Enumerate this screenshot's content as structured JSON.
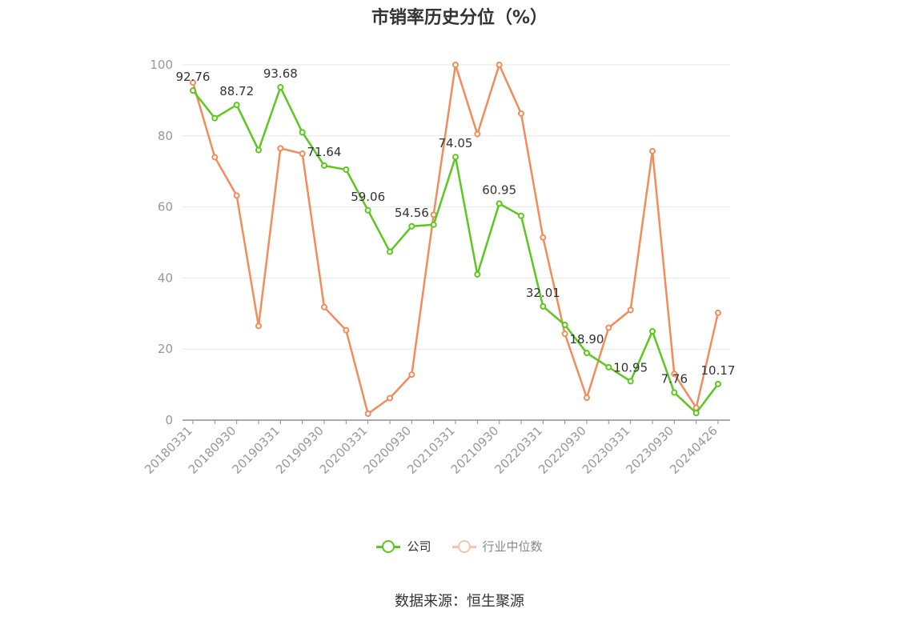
{
  "title": "市销率历史分位（%）",
  "source_text": "数据来源：恒生聚源",
  "legend": [
    {
      "label": "公司",
      "color": "#5cc81e",
      "text_color": "#333333"
    },
    {
      "label": "行业中位数",
      "color": "#f5c3ad",
      "text_color": "#888888"
    }
  ],
  "chart_data": {
    "type": "line",
    "title": "市销率历史分位（%）",
    "ylim": [
      0,
      100
    ],
    "yticks": [
      0,
      20,
      40,
      60,
      80,
      100
    ],
    "grid": true,
    "legend_position": "bottom",
    "xtick_labels": [
      "20180331",
      "20180930",
      "20190331",
      "20190930",
      "20200331",
      "20200930",
      "20210331",
      "20210930",
      "20220331",
      "20220930",
      "20230331",
      "20230930",
      "20240426"
    ],
    "x": [
      "20180331",
      "20180630",
      "20180930",
      "20181231",
      "20190331",
      "20190630",
      "20190930",
      "20191231",
      "20200331",
      "20200630",
      "20200930",
      "20201231",
      "20210331",
      "20210630",
      "20210930",
      "20211231",
      "20220331",
      "20220630",
      "20220930",
      "20221231",
      "20230331",
      "20230630",
      "20230930",
      "20231231",
      "20240426"
    ],
    "series": [
      {
        "name": "公司",
        "color": "#5cc81e",
        "values": [
          92.76,
          85.0,
          88.72,
          76.0,
          93.68,
          81.0,
          71.64,
          70.5,
          59.06,
          47.4,
          54.56,
          55.0,
          74.05,
          41.0,
          60.95,
          57.5,
          32.01,
          26.8,
          18.9,
          14.9,
          10.95,
          25.0,
          7.76,
          2.0,
          10.17
        ],
        "labels": {
          "0": "92.76",
          "2": "88.72",
          "4": "93.68",
          "6": "71.64",
          "8": "59.06",
          "10": "54.56",
          "12": "74.05",
          "14": "60.95",
          "16": "32.01",
          "18": "18.90",
          "20": "10.95",
          "22": "7.76",
          "24": "10.17"
        }
      },
      {
        "name": "行业中位数",
        "color": "#f28c5a",
        "values": [
          95.0,
          74.0,
          63.2,
          26.5,
          76.5,
          75.0,
          31.8,
          25.3,
          1.8,
          6.2,
          12.8,
          57.8,
          100.0,
          80.5,
          100.0,
          86.3,
          51.4,
          24.3,
          6.3,
          26.0,
          31.0,
          75.7,
          13.0,
          3.5,
          30.2
        ]
      }
    ]
  }
}
